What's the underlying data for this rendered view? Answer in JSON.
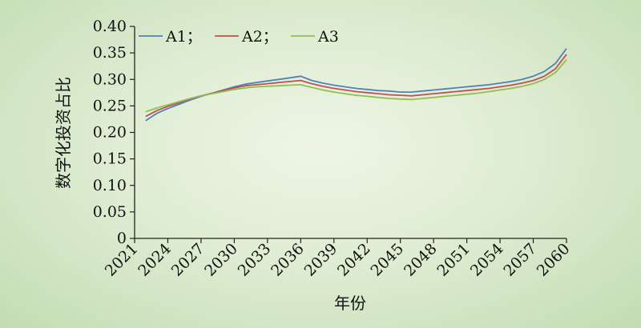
{
  "chart_data": {
    "type": "line",
    "title": "",
    "xlabel": "年份",
    "ylabel": "数字化投资占比",
    "xlim": [
      2021,
      2060
    ],
    "ylim": [
      0,
      0.4
    ],
    "x_ticks": [
      "2021",
      "2024",
      "2027",
      "2030",
      "2033",
      "2036",
      "2039",
      "2042",
      "2045",
      "2048",
      "2051",
      "2054",
      "2057",
      "2060"
    ],
    "y_ticks": [
      "0",
      "0.05",
      "0.10",
      "0.15",
      "0.20",
      "0.25",
      "0.30",
      "0.35",
      "0.40"
    ],
    "legend": [
      "A1；",
      "A2；",
      "A3"
    ],
    "legend_position": "top-left",
    "grid": false,
    "x": [
      2022,
      2023,
      2024,
      2025,
      2026,
      2027,
      2028,
      2029,
      2030,
      2031,
      2032,
      2033,
      2034,
      2035,
      2036,
      2037,
      2038,
      2039,
      2040,
      2041,
      2042,
      2043,
      2044,
      2045,
      2046,
      2047,
      2048,
      2049,
      2050,
      2051,
      2052,
      2053,
      2054,
      2055,
      2056,
      2057,
      2058,
      2059,
      2060
    ],
    "series": [
      {
        "name": "A1",
        "color": "#4f81bd",
        "values": [
          0.222,
          0.236,
          0.245,
          0.253,
          0.261,
          0.268,
          0.274,
          0.28,
          0.286,
          0.291,
          0.294,
          0.297,
          0.3,
          0.303,
          0.306,
          0.298,
          0.293,
          0.289,
          0.286,
          0.283,
          0.281,
          0.279,
          0.278,
          0.276,
          0.276,
          0.278,
          0.28,
          0.282,
          0.284,
          0.286,
          0.288,
          0.29,
          0.293,
          0.296,
          0.3,
          0.306,
          0.315,
          0.33,
          0.358
        ]
      },
      {
        "name": "A2",
        "color": "#c0504d",
        "values": [
          0.23,
          0.241,
          0.249,
          0.256,
          0.263,
          0.269,
          0.274,
          0.279,
          0.284,
          0.288,
          0.29,
          0.292,
          0.294,
          0.296,
          0.298,
          0.292,
          0.287,
          0.283,
          0.28,
          0.277,
          0.275,
          0.273,
          0.271,
          0.27,
          0.269,
          0.271,
          0.273,
          0.275,
          0.277,
          0.279,
          0.281,
          0.283,
          0.286,
          0.289,
          0.293,
          0.298,
          0.306,
          0.32,
          0.347
        ]
      },
      {
        "name": "A3",
        "color": "#8fbf52",
        "values": [
          0.239,
          0.246,
          0.252,
          0.258,
          0.264,
          0.269,
          0.273,
          0.277,
          0.281,
          0.284,
          0.286,
          0.287,
          0.288,
          0.289,
          0.29,
          0.285,
          0.28,
          0.276,
          0.273,
          0.27,
          0.268,
          0.266,
          0.264,
          0.263,
          0.262,
          0.264,
          0.266,
          0.268,
          0.27,
          0.272,
          0.274,
          0.277,
          0.28,
          0.283,
          0.287,
          0.292,
          0.3,
          0.313,
          0.337
        ]
      }
    ]
  }
}
